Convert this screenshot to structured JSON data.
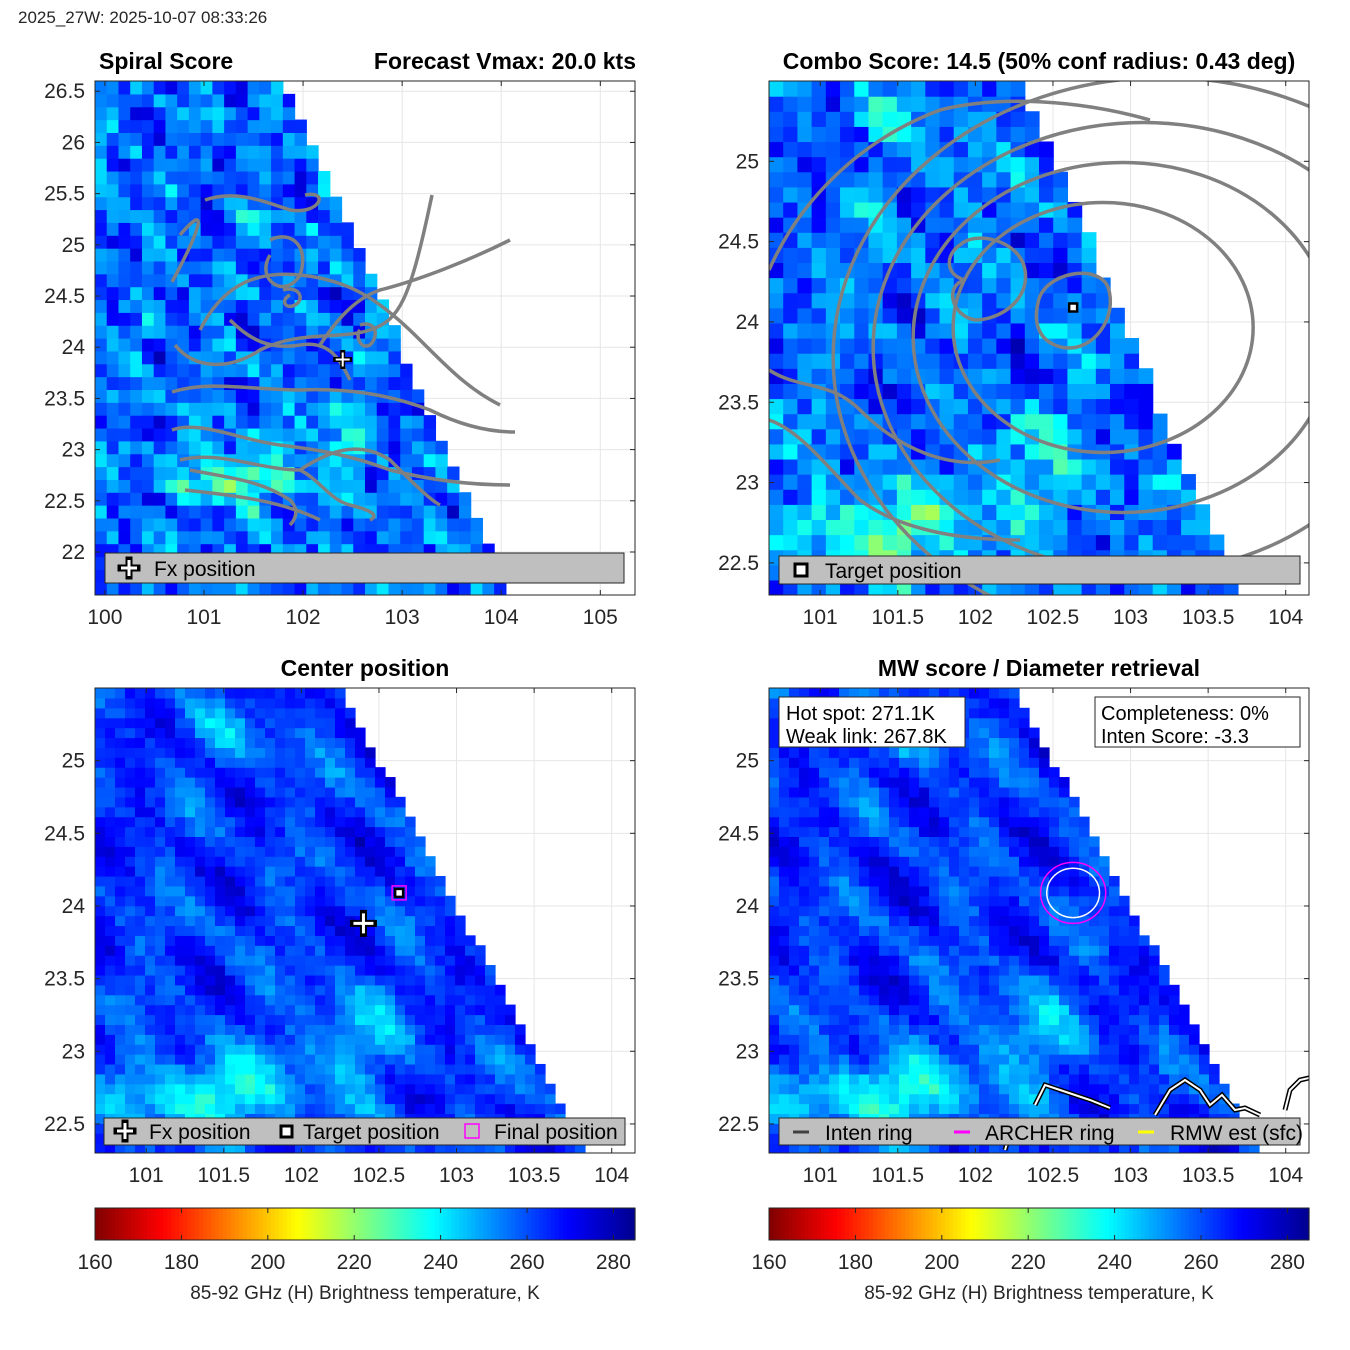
{
  "header": "2025_27W: 2025-10-07 08:33:26",
  "colors": {
    "colormap": [
      "#800000",
      "#ff0000",
      "#ff8000",
      "#ffff00",
      "#80ff80",
      "#00ffff",
      "#0080ff",
      "#0000ff",
      "#00008f"
    ],
    "contour": "#808080",
    "fx_marker": "#ffffff",
    "target_marker": "#000000",
    "final_marker": "#ff00ff",
    "legend_bg": "#bfbfbf"
  },
  "panels": {
    "spiral": {
      "title_left": "Spiral Score",
      "title_right": "Forecast Vmax: 20.0 kts",
      "legend": [
        "Fx position"
      ]
    },
    "combo": {
      "title": "Combo Score: 14.5  (50% conf radius: 0.43 deg)",
      "legend": [
        "Target position"
      ]
    },
    "center": {
      "title": "Center position",
      "legend": [
        "Fx position",
        "Target position",
        "Final position"
      ]
    },
    "mw": {
      "title": "MW score / Diameter retrieval",
      "info_left": [
        "Hot spot: 271.1K",
        "Weak link: 267.8K"
      ],
      "info_right": [
        "Completeness: 0%",
        "Inten Score: -3.3"
      ],
      "legend": [
        "Inten ring",
        "ARCHER ring",
        "RMW est (sfc)"
      ]
    }
  },
  "colorbars": {
    "label": "85-92 GHz (H) Brightness temperature, K",
    "ticks": [
      "160",
      "180",
      "200",
      "220",
      "240",
      "260",
      "280"
    ]
  },
  "chart_data": [
    {
      "type": "heatmap",
      "name": "Spiral Score",
      "title": "Spiral Score",
      "subtitle": "Forecast Vmax: 20.0 kts",
      "xlim": [
        99.9,
        105.35
      ],
      "ylim": [
        21.58,
        26.6
      ],
      "xticks": [
        100,
        101,
        102,
        103,
        104,
        105
      ],
      "yticks": [
        22,
        22.5,
        23,
        23.5,
        24,
        24.5,
        25,
        25.5,
        26,
        26.5
      ],
      "swath_edge": [
        [
          101.8,
          26.6
        ],
        [
          104.1,
          21.58
        ]
      ],
      "fx_position": [
        102.4,
        23.88
      ],
      "contours": "spiral",
      "legend": [
        "Fx position"
      ]
    },
    {
      "type": "heatmap",
      "name": "Combo Score",
      "title": "Combo Score: 14.5  (50% conf radius: 0.43 deg)",
      "xlim": [
        100.67,
        104.15
      ],
      "ylim": [
        22.3,
        25.5
      ],
      "xticks": [
        101,
        101.5,
        102,
        102.5,
        103,
        103.5,
        104
      ],
      "yticks": [
        22.5,
        23,
        23.5,
        24,
        24.5,
        25
      ],
      "swath_edge": [
        [
          102.3,
          25.5
        ],
        [
          103.7,
          22.3
        ]
      ],
      "target_position": [
        102.63,
        24.09
      ],
      "contours": "combo",
      "legend": [
        "Target position"
      ]
    },
    {
      "type": "heatmap",
      "name": "Center position",
      "title": "Center position",
      "xlim": [
        100.67,
        104.15
      ],
      "ylim": [
        22.3,
        25.5
      ],
      "xticks": [
        101,
        101.5,
        102,
        102.5,
        103,
        103.5,
        104
      ],
      "yticks": [
        22.5,
        23,
        23.5,
        24,
        24.5,
        25
      ],
      "swath_edge": [
        [
          102.25,
          25.5
        ],
        [
          103.85,
          22.3
        ]
      ],
      "fx_position": [
        102.4,
        23.88
      ],
      "target_position": [
        102.63,
        24.09
      ],
      "final_position": [
        102.63,
        24.09
      ],
      "legend": [
        "Fx position",
        "Target position",
        "Final position"
      ]
    },
    {
      "type": "heatmap",
      "name": "MW score / Diameter retrieval",
      "title": "MW score / Diameter retrieval",
      "xlim": [
        100.67,
        104.15
      ],
      "ylim": [
        22.3,
        25.5
      ],
      "xticks": [
        101,
        101.5,
        102,
        102.5,
        103,
        103.5,
        104
      ],
      "yticks": [
        22.5,
        23,
        23.5,
        24,
        24.5,
        25
      ],
      "swath_edge": [
        [
          102.25,
          25.5
        ],
        [
          103.85,
          22.3
        ]
      ],
      "archer_ring": {
        "center": [
          102.63,
          24.09
        ],
        "radius_deg": 0.21
      },
      "inten_ring": {
        "center": [
          102.63,
          24.09
        ],
        "radius_deg": 0.17
      },
      "hot_spot_K": 271.1,
      "weak_link_K": 267.8,
      "completeness_pct": 0,
      "inten_score": -3.3,
      "legend": [
        "Inten ring",
        "ARCHER ring",
        "RMW est (sfc)"
      ]
    }
  ],
  "colorbar_range": [
    160,
    285
  ]
}
